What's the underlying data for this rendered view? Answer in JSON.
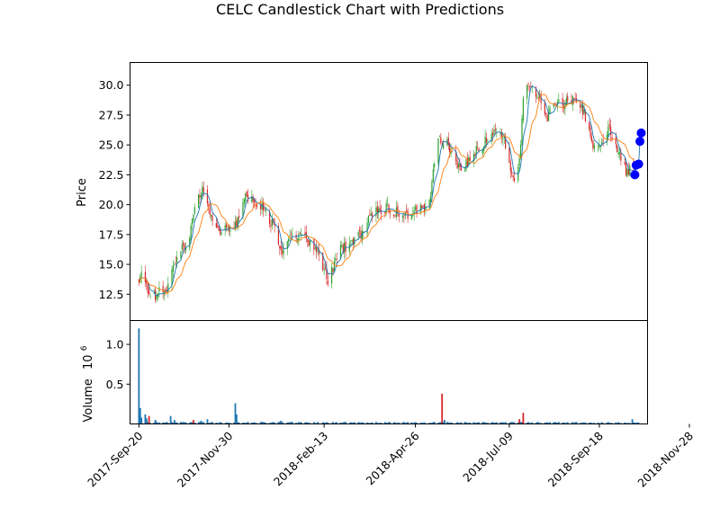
{
  "chart_data": {
    "type": "candlestick",
    "title": "CELC Candlestick Chart with Predictions",
    "price_panel": {
      "ylabel": "Price",
      "ylim": [
        10.3,
        31.9
      ],
      "yticks": [
        "12.5",
        "15.0",
        "17.5",
        "20.0",
        "22.5",
        "25.0",
        "27.5",
        "30.0"
      ],
      "ytick_values": [
        12.5,
        15.0,
        17.5,
        20.0,
        22.5,
        25.0,
        27.5,
        30.0
      ],
      "up_color": "#2ca02c",
      "down_color": "#d62728",
      "ma_fast_color": "#1f77b4",
      "ma_slow_color": "#ff7f0e",
      "price_path": [
        [
          "2017-09-20",
          13.6
        ],
        [
          "2017-09-23",
          14.3
        ],
        [
          "2017-09-26",
          13.2
        ],
        [
          "2017-09-30",
          12.2
        ],
        [
          "2017-10-05",
          12.6
        ],
        [
          "2017-10-09",
          12.9
        ],
        [
          "2017-10-12",
          12.6
        ],
        [
          "2017-10-16",
          14.2
        ],
        [
          "2017-10-20",
          15.6
        ],
        [
          "2017-10-23",
          16.2
        ],
        [
          "2017-10-27",
          16.4
        ],
        [
          "2017-10-30",
          17.2
        ],
        [
          "2017-11-02",
          19.0
        ],
        [
          "2017-11-06",
          20.6
        ],
        [
          "2017-11-09",
          21.2
        ],
        [
          "2017-11-12",
          20.2
        ],
        [
          "2017-11-15",
          18.9
        ],
        [
          "2017-11-19",
          18.1
        ],
        [
          "2017-11-23",
          17.8
        ],
        [
          "2017-11-28",
          18.2
        ],
        [
          "2017-12-02",
          18.1
        ],
        [
          "2017-12-06",
          18.6
        ],
        [
          "2017-12-10",
          19.5
        ],
        [
          "2017-12-13",
          20.9
        ],
        [
          "2017-12-16",
          20.6
        ],
        [
          "2017-12-20",
          20.2
        ],
        [
          "2017-12-24",
          19.9
        ],
        [
          "2017-12-28",
          19.6
        ],
        [
          "2018-01-02",
          18.6
        ],
        [
          "2018-01-06",
          17.6
        ],
        [
          "2018-01-09",
          16.4
        ],
        [
          "2018-01-12",
          16.2
        ],
        [
          "2018-01-16",
          16.9
        ],
        [
          "2018-01-20",
          17.3
        ],
        [
          "2018-01-24",
          17.5
        ],
        [
          "2018-01-28",
          17.3
        ],
        [
          "2018-02-02",
          16.8
        ],
        [
          "2018-02-06",
          16.1
        ],
        [
          "2018-02-10",
          15.6
        ],
        [
          "2018-02-13",
          14.6
        ],
        [
          "2018-02-16",
          13.8
        ],
        [
          "2018-02-20",
          14.8
        ],
        [
          "2018-02-24",
          16.0
        ],
        [
          "2018-02-28",
          16.3
        ],
        [
          "2018-03-05",
          16.8
        ],
        [
          "2018-03-10",
          17.2
        ],
        [
          "2018-03-15",
          17.6
        ],
        [
          "2018-03-19",
          18.6
        ],
        [
          "2018-03-23",
          19.2
        ],
        [
          "2018-03-28",
          19.6
        ],
        [
          "2018-04-03",
          19.7
        ],
        [
          "2018-04-09",
          19.5
        ],
        [
          "2018-04-15",
          19.2
        ],
        [
          "2018-04-21",
          19.2
        ],
        [
          "2018-04-26",
          19.4
        ],
        [
          "2018-05-02",
          19.7
        ],
        [
          "2018-05-07",
          20.3
        ],
        [
          "2018-05-10",
          23.0
        ],
        [
          "2018-05-14",
          25.5
        ],
        [
          "2018-05-17",
          25.2
        ],
        [
          "2018-05-21",
          25.0
        ],
        [
          "2018-05-25",
          24.2
        ],
        [
          "2018-05-30",
          23.0
        ],
        [
          "2018-06-04",
          23.2
        ],
        [
          "2018-06-09",
          24.0
        ],
        [
          "2018-06-14",
          24.6
        ],
        [
          "2018-06-19",
          25.2
        ],
        [
          "2018-06-24",
          25.8
        ],
        [
          "2018-06-29",
          26.0
        ],
        [
          "2018-07-03",
          25.8
        ],
        [
          "2018-07-07",
          24.8
        ],
        [
          "2018-07-11",
          22.5
        ],
        [
          "2018-07-14",
          21.4
        ],
        [
          "2018-07-17",
          23.8
        ],
        [
          "2018-07-20",
          28.5
        ],
        [
          "2018-07-23",
          30.0
        ],
        [
          "2018-07-27",
          29.5
        ],
        [
          "2018-07-31",
          29.1
        ],
        [
          "2018-08-04",
          28.5
        ],
        [
          "2018-08-08",
          27.2
        ],
        [
          "2018-08-12",
          28.3
        ],
        [
          "2018-08-17",
          28.6
        ],
        [
          "2018-08-22",
          28.4
        ],
        [
          "2018-08-27",
          28.9
        ],
        [
          "2018-09-02",
          28.8
        ],
        [
          "2018-09-06",
          27.6
        ],
        [
          "2018-09-10",
          26.6
        ],
        [
          "2018-09-13",
          25.0
        ],
        [
          "2018-09-17",
          24.5
        ],
        [
          "2018-09-21",
          25.6
        ],
        [
          "2018-09-26",
          26.5
        ],
        [
          "2018-10-01",
          25.1
        ],
        [
          "2018-10-05",
          23.8
        ],
        [
          "2018-10-09",
          22.8
        ],
        [
          "2018-10-13",
          23.0
        ],
        [
          "2018-10-16",
          22.6
        ]
      ],
      "predictions": [
        {
          "x": "2018-10-16",
          "y": 22.5
        },
        {
          "x": "2018-10-17",
          "y": 23.3
        },
        {
          "x": "2018-10-19",
          "y": 23.4
        },
        {
          "x": "2018-10-20",
          "y": 25.3
        },
        {
          "x": "2018-10-21",
          "y": 26.0
        }
      ],
      "prediction_color": "#0000ff"
    },
    "volume_panel": {
      "ylabel": "Volume",
      "scale_label": "10",
      "scale_exponent": "6",
      "ylim": [
        0,
        1.3
      ],
      "yticks": [
        "0.5",
        "1.0"
      ],
      "ytick_values": [
        0.5,
        1.0
      ],
      "bar_color": "#1f77b4",
      "baseline": 0.015,
      "spikes": [
        {
          "x": "2017-09-20",
          "value": 1.2
        },
        {
          "x": "2017-09-21",
          "value": 0.2
        },
        {
          "x": "2017-09-22",
          "value": 0.08
        },
        {
          "x": "2017-09-25",
          "value": 0.12
        },
        {
          "x": "2017-09-26",
          "value": 0.07
        },
        {
          "x": "2017-09-28",
          "value": 0.1
        },
        {
          "x": "2017-10-03",
          "value": 0.05
        },
        {
          "x": "2017-10-15",
          "value": 0.1
        },
        {
          "x": "2017-10-18",
          "value": 0.05
        },
        {
          "x": "2017-11-02",
          "value": 0.05
        },
        {
          "x": "2017-11-08",
          "value": 0.04
        },
        {
          "x": "2017-11-13",
          "value": 0.06
        },
        {
          "x": "2017-12-05",
          "value": 0.26
        },
        {
          "x": "2017-12-06",
          "value": 0.12
        },
        {
          "x": "2018-01-10",
          "value": 0.04
        },
        {
          "x": "2018-05-17",
          "value": 0.38
        },
        {
          "x": "2018-05-19",
          "value": 0.05
        },
        {
          "x": "2018-07-17",
          "value": 0.06
        },
        {
          "x": "2018-07-20",
          "value": 0.14
        },
        {
          "x": "2018-10-14",
          "value": 0.06
        }
      ]
    },
    "x_axis": {
      "start": "2017-09-20",
      "end": "2018-10-21",
      "xlim": [
        "2017-09-13",
        "2018-10-26"
      ],
      "tick_labels": [
        "2017-Sep-20",
        "2017-Nov-30",
        "2018-Feb-13",
        "2018-Apr-26",
        "2018-Jul-09",
        "2018-Sep-18",
        "2018-Nov-28"
      ],
      "tick_dates": [
        "2017-09-20",
        "2017-11-30",
        "2018-02-13",
        "2018-04-26",
        "2018-07-09",
        "2018-09-18",
        "2018-11-28"
      ]
    }
  }
}
